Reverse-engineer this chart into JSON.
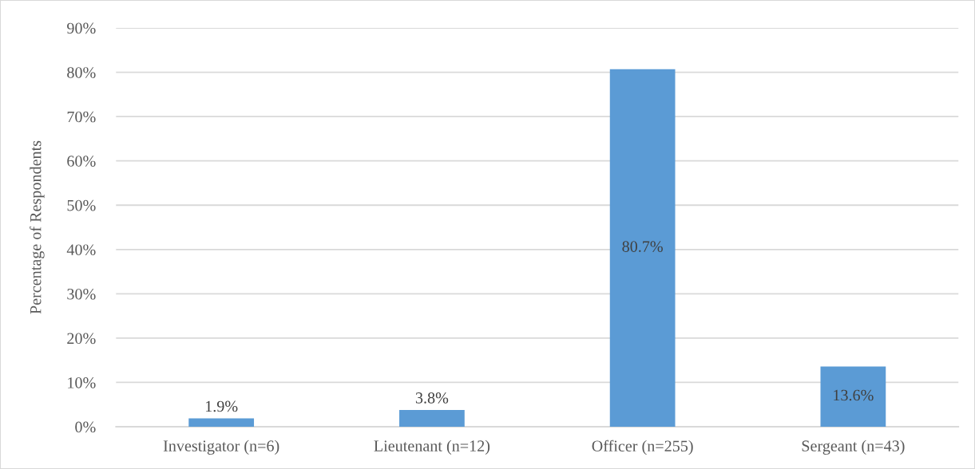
{
  "chart_data": {
    "type": "bar",
    "ylabel": "Percentage of Respondents",
    "categories": [
      "Investigator (n=6)",
      "Lieutenant (n=12)",
      "Officer (n=255)",
      "Sergeant (n=43)"
    ],
    "values": [
      1.9,
      3.8,
      80.7,
      13.6
    ],
    "value_labels": [
      "1.9%",
      "3.8%",
      "80.7%",
      "13.6%"
    ],
    "color": "#5b9bd5",
    "ylim": [
      0,
      90
    ],
    "yticks": [
      {
        "value": 0,
        "label": "0%"
      },
      {
        "value": 10,
        "label": "10%"
      },
      {
        "value": 20,
        "label": "20%"
      },
      {
        "value": 30,
        "label": "30%"
      },
      {
        "value": 40,
        "label": "40%"
      },
      {
        "value": 50,
        "label": "50%"
      },
      {
        "value": 60,
        "label": "60%"
      },
      {
        "value": 70,
        "label": "70%"
      },
      {
        "value": 80,
        "label": "80%"
      },
      {
        "value": 90,
        "label": "90%"
      }
    ],
    "grid": "y",
    "legend": false
  }
}
